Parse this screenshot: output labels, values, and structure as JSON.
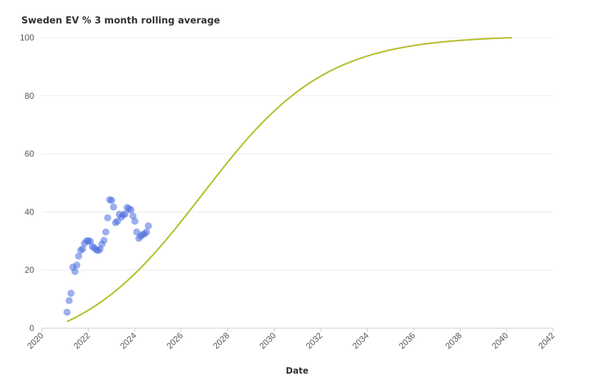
{
  "chart_data": {
    "type": "scatter",
    "title": "Sweden EV % 3 month rolling average",
    "xlabel": "Date",
    "ylabel": "",
    "xlim": [
      2020,
      2042
    ],
    "ylim": [
      0,
      100
    ],
    "x_ticks": [
      "2020",
      "2022",
      "2024",
      "2026",
      "2028",
      "2030",
      "2032",
      "2034",
      "2036",
      "2038",
      "2040",
      "2042"
    ],
    "y_ticks": [
      "0",
      "20",
      "40",
      "60",
      "80",
      "100"
    ],
    "grid": "horizontal",
    "colors": {
      "points": "#4a6ee0",
      "trend": "#b5bf2f",
      "grid": "#ececec",
      "axis": "#cccccc"
    },
    "series": [
      {
        "kind": "scatter",
        "points": [
          [
            2021.08,
            5.5
          ],
          [
            2021.17,
            9.5
          ],
          [
            2021.25,
            12.0
          ],
          [
            2021.33,
            21.0
          ],
          [
            2021.42,
            19.5
          ],
          [
            2021.5,
            21.7
          ],
          [
            2021.58,
            24.8
          ],
          [
            2021.67,
            26.8
          ],
          [
            2021.75,
            27.3
          ],
          [
            2021.83,
            29.2
          ],
          [
            2021.92,
            30.0
          ],
          [
            2022.0,
            30.1
          ],
          [
            2022.08,
            29.9
          ],
          [
            2022.17,
            28.1
          ],
          [
            2022.25,
            27.7
          ],
          [
            2022.33,
            27.0
          ],
          [
            2022.42,
            26.7
          ],
          [
            2022.5,
            27.2
          ],
          [
            2022.58,
            28.9
          ],
          [
            2022.67,
            30.2
          ],
          [
            2022.75,
            33.1
          ],
          [
            2022.83,
            38.0
          ],
          [
            2022.92,
            44.2
          ],
          [
            2023.0,
            44.0
          ],
          [
            2023.08,
            41.7
          ],
          [
            2023.17,
            36.3
          ],
          [
            2023.25,
            36.8
          ],
          [
            2023.33,
            39.2
          ],
          [
            2023.42,
            38.2
          ],
          [
            2023.5,
            39.0
          ],
          [
            2023.58,
            39.3
          ],
          [
            2023.67,
            41.5
          ],
          [
            2023.75,
            41.1
          ],
          [
            2023.83,
            40.7
          ],
          [
            2023.92,
            38.6
          ],
          [
            2024.0,
            36.8
          ],
          [
            2024.08,
            33.1
          ],
          [
            2024.17,
            30.9
          ],
          [
            2024.25,
            31.7
          ],
          [
            2024.33,
            32.2
          ],
          [
            2024.42,
            32.5
          ],
          [
            2024.5,
            33.1
          ],
          [
            2024.58,
            35.2
          ]
        ]
      },
      {
        "kind": "line",
        "trend": {
          "x_start": 2021.1,
          "x_end": 2040.2,
          "y_min": -8.7,
          "y_max": 100.7,
          "midpoint": 2026.9,
          "rate": 0.377
        }
      }
    ]
  }
}
